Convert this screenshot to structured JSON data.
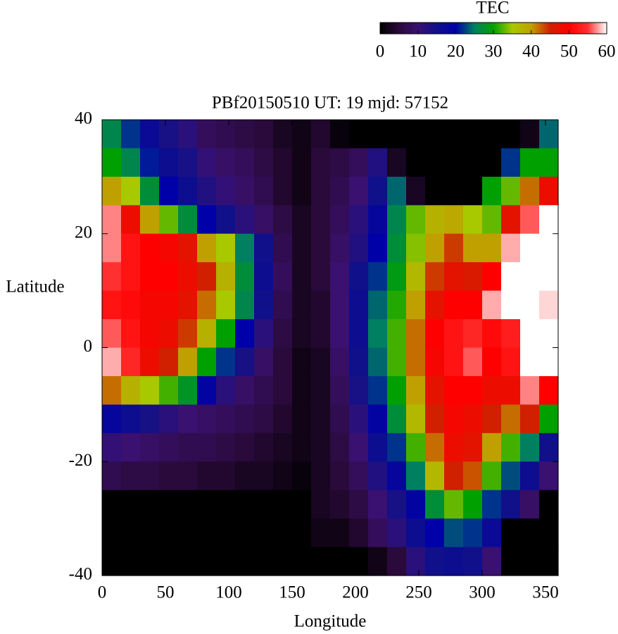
{
  "chart_data": {
    "type": "heatmap",
    "title": "PBf20150510  UT: 19  mjd: 57152",
    "xlabel": "Longitude",
    "ylabel": "Latitude",
    "colorbar_label": "TEC",
    "x": [
      7.5,
      22.5,
      37.5,
      52.5,
      67.5,
      82.5,
      97.5,
      112.5,
      127.5,
      142.5,
      157.5,
      172.5,
      187.5,
      202.5,
      217.5,
      232.5,
      247.5,
      262.5,
      277.5,
      292.5,
      307.5,
      322.5,
      337.5,
      352.5
    ],
    "y": [
      37.5,
      32.5,
      27.5,
      22.5,
      17.5,
      12.5,
      7.5,
      2.5,
      -2.5,
      -7.5,
      -12.5,
      -17.5,
      -22.5,
      -27.5,
      -32.5,
      -37.5
    ],
    "z": [
      [
        26,
        22,
        17,
        14,
        12,
        8,
        7,
        6,
        5,
        3,
        2,
        4,
        1,
        0,
        0,
        0,
        0,
        0,
        0,
        0,
        0,
        0,
        2,
        24
      ],
      [
        30,
        26,
        21,
        16,
        14,
        11,
        9,
        8,
        6,
        4,
        2,
        5,
        6,
        8,
        13,
        3,
        0,
        0,
        0,
        0,
        0,
        22,
        30,
        30
      ],
      [
        40,
        35,
        27,
        20,
        16,
        13,
        11,
        9,
        7,
        4,
        2,
        5,
        7,
        10,
        15,
        24,
        3,
        0,
        0,
        0,
        30,
        33,
        42,
        48
      ],
      [
        57,
        48,
        40,
        33,
        27,
        20,
        15,
        12,
        9,
        6,
        3,
        5,
        8,
        12,
        18,
        26,
        33,
        38,
        39,
        35,
        33,
        47,
        56,
        60
      ],
      [
        57,
        52,
        50,
        49,
        47,
        40,
        35,
        25,
        15,
        7,
        3,
        5,
        9,
        13,
        20,
        27,
        34,
        40,
        44,
        40,
        40,
        58,
        60,
        60
      ],
      [
        55,
        52,
        50,
        50,
        48,
        45,
        38,
        27,
        16,
        8,
        3,
        5,
        10,
        15,
        22,
        29,
        37,
        44,
        47,
        46,
        50,
        60,
        60,
        60
      ],
      [
        52,
        51,
        49,
        49,
        47,
        42,
        35,
        26,
        15,
        7,
        3,
        4,
        10,
        16,
        24,
        31,
        40,
        47,
        50,
        50,
        58,
        60,
        60,
        59
      ],
      [
        56,
        52,
        49,
        48,
        44,
        38,
        30,
        20,
        12,
        6,
        3,
        4,
        10,
        16,
        25,
        32,
        42,
        50,
        52,
        54,
        51,
        53,
        60,
        60
      ],
      [
        58,
        54,
        48,
        45,
        40,
        30,
        22,
        14,
        9,
        5,
        2,
        3,
        9,
        15,
        24,
        32,
        42,
        49,
        52,
        56,
        50,
        52,
        60,
        60
      ],
      [
        42,
        38,
        35,
        32,
        28,
        19,
        12,
        9,
        7,
        5,
        2,
        3,
        8,
        14,
        22,
        30,
        40,
        47,
        50,
        50,
        48,
        48,
        57,
        50
      ],
      [
        18,
        16,
        14,
        12,
        10,
        9,
        8,
        7,
        6,
        4,
        2,
        3,
        7,
        12,
        19,
        27,
        37,
        45,
        49,
        48,
        45,
        42,
        45,
        30
      ],
      [
        11,
        10,
        9,
        8,
        7,
        7,
        6,
        5,
        4,
        3,
        2,
        3,
        6,
        10,
        16,
        22,
        32,
        42,
        48,
        47,
        40,
        32,
        25,
        15
      ],
      [
        7,
        6,
        6,
        5,
        5,
        4,
        4,
        3,
        3,
        2,
        1,
        3,
        5,
        8,
        13,
        18,
        25,
        37,
        45,
        43,
        32,
        23,
        16,
        10
      ],
      [
        0,
        0,
        0,
        0,
        0,
        0,
        0,
        0,
        0,
        0,
        0,
        3,
        4,
        6,
        10,
        14,
        19,
        27,
        33,
        30,
        22,
        15,
        9,
        0
      ],
      [
        0,
        0,
        0,
        0,
        0,
        0,
        0,
        0,
        0,
        0,
        0,
        2,
        2,
        4,
        8,
        12,
        16,
        20,
        23,
        22,
        17,
        0,
        0,
        0
      ],
      [
        0,
        0,
        0,
        0,
        0,
        0,
        0,
        0,
        0,
        0,
        0,
        0,
        0,
        0,
        2,
        5,
        12,
        15,
        16,
        15,
        10,
        0,
        0,
        0
      ]
    ],
    "colormap": [
      "#000000",
      "#2a0a3a",
      "#3a1070",
      "#10108a",
      "#0000a8",
      "#008060",
      "#00a000",
      "#a8c800",
      "#c0a000",
      "#d02000",
      "#ff0000",
      "#ff3030",
      "#ffffff"
    ],
    "clim": [
      0,
      60
    ],
    "cticks": [
      0,
      10,
      20,
      30,
      40,
      50,
      60
    ],
    "xlim": [
      0,
      360
    ],
    "xticks": [
      0,
      50,
      100,
      150,
      200,
      250,
      300,
      350
    ],
    "ylim": [
      -40,
      40
    ],
    "yticks": [
      -40,
      -20,
      0,
      20,
      40
    ]
  }
}
